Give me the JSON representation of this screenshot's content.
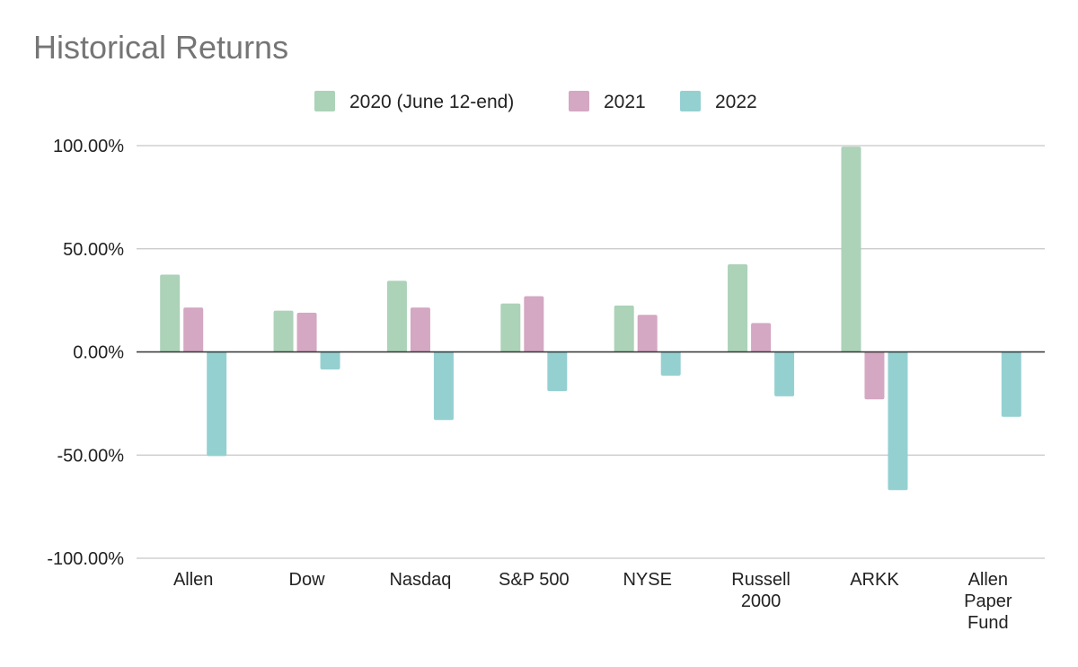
{
  "chart_data": {
    "type": "bar",
    "title": "Historical Returns",
    "xlabel": "",
    "ylabel": "",
    "ylim": [
      -100,
      100
    ],
    "yticks": [
      100,
      50,
      0,
      -50,
      -100
    ],
    "ytick_labels": [
      "100.00%",
      "50.00%",
      "0.00%",
      "-50.00%",
      "-100.00%"
    ],
    "categories": [
      "Allen",
      "Dow",
      "Nasdaq",
      "S&P 500",
      "NYSE",
      "Russell 2000",
      "ARKK",
      "Allen Paper Fund"
    ],
    "category_label_lines": [
      [
        "Allen"
      ],
      [
        "Dow"
      ],
      [
        "Nasdaq"
      ],
      [
        "S&P 500"
      ],
      [
        "NYSE"
      ],
      [
        "Russell",
        "2000"
      ],
      [
        "ARKK"
      ],
      [
        "Allen",
        "Paper",
        "Fund"
      ]
    ],
    "series": [
      {
        "name": "2020 (June 12-end)",
        "color": "#acd2b8",
        "values": [
          37.5,
          20,
          34.5,
          23.5,
          22.5,
          42.5,
          99.5,
          null
        ]
      },
      {
        "name": "2021",
        "color": "#d4a7c2",
        "values": [
          21.5,
          19,
          21.5,
          27,
          18,
          14,
          -23,
          null
        ]
      },
      {
        "name": "2022",
        "color": "#95d0d1",
        "values": [
          -50.5,
          -8.5,
          -33,
          -19,
          -11.5,
          -21.5,
          -67,
          -31.5
        ]
      }
    ],
    "legend_position": "top-center",
    "grid": true
  }
}
